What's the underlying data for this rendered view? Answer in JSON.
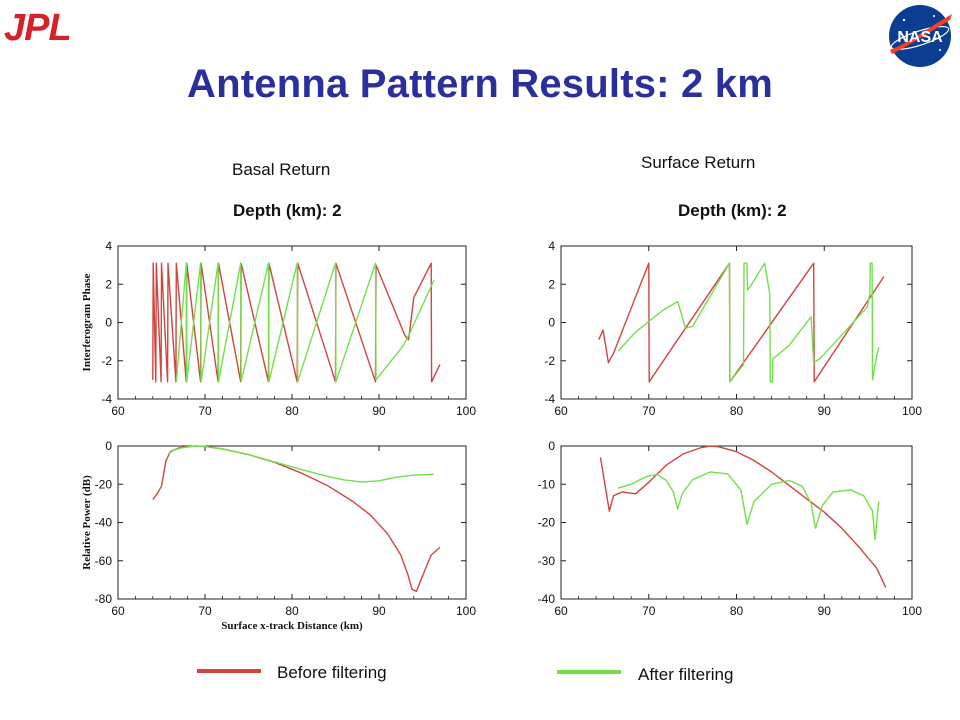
{
  "header": {
    "title": "Antenna Pattern Results: 2 km",
    "left_logo": "JPL",
    "right_logo": "NASA",
    "right_logo_icon": "nasa-meatball-icon"
  },
  "columns": {
    "left_label": "Basal Return",
    "right_label": "Surface Return",
    "left_depth": "Depth (km): 2",
    "right_depth": "Depth (km): 2"
  },
  "legend": {
    "before_label": "Before filtering",
    "after_label": "After filtering"
  },
  "colors": {
    "title": "#2a2f9c",
    "before": "#d0453f",
    "after": "#72e04a",
    "jpl": "#d7202a",
    "nasa_blue": "#0b3d91",
    "nasa_red": "#fc3d21"
  },
  "chart_data": [
    {
      "id": "basal-phase",
      "type": "line",
      "ylabel": "Interferogram Phase",
      "xlim": [
        60,
        100
      ],
      "ylim": [
        -4,
        4
      ],
      "xticks": [
        60,
        70,
        80,
        90,
        100
      ],
      "yticks": [
        -4,
        -2,
        0,
        2,
        4
      ],
      "series": [
        {
          "name": "Before filtering",
          "color": "#d0453f",
          "x": [
            64.0,
            64.05,
            64.35,
            64.4,
            64.95,
            65.0,
            65.7,
            65.75,
            66.65,
            66.7,
            67.85,
            67.9,
            69.5,
            69.55,
            71.5,
            71.55,
            74.1,
            74.15,
            77.3,
            77.35,
            80.6,
            80.65,
            85.0,
            85.05,
            89.6,
            89.65,
            93.0,
            93.4,
            94.0,
            96.0,
            96.05,
            97.0
          ],
          "y": [
            -3.0,
            3.1,
            -3.1,
            3.1,
            -3.1,
            3.1,
            -3.1,
            3.1,
            -3.1,
            3.1,
            -3.1,
            3.1,
            -3.1,
            3.1,
            -3.1,
            3.1,
            -3.1,
            3.1,
            -3.1,
            3.1,
            -3.1,
            3.1,
            -3.1,
            3.1,
            -3.1,
            3.0,
            -0.7,
            -0.9,
            1.3,
            3.1,
            -3.1,
            -2.2
          ]
        },
        {
          "name": "After filtering",
          "color": "#72e04a",
          "x": [
            66.7,
            67.85,
            67.9,
            69.5,
            69.55,
            71.5,
            71.55,
            74.1,
            74.15,
            77.3,
            77.35,
            80.6,
            80.65,
            85.0,
            85.05,
            89.6,
            89.65,
            92.8,
            93.5,
            96.3
          ],
          "y": [
            -3.1,
            3.1,
            -3.1,
            3.1,
            -3.1,
            3.1,
            -3.1,
            3.1,
            -3.1,
            3.1,
            -3.1,
            3.1,
            -3.1,
            3.1,
            -3.1,
            3.1,
            -3.0,
            -1.2,
            -0.6,
            2.2
          ]
        }
      ]
    },
    {
      "id": "surface-phase",
      "type": "line",
      "ylabel": "",
      "xlim": [
        60,
        100
      ],
      "ylim": [
        -4,
        4
      ],
      "xticks": [
        60,
        70,
        80,
        90,
        100
      ],
      "yticks": [
        -4,
        -2,
        0,
        2,
        4
      ],
      "series": [
        {
          "name": "Before filtering",
          "color": "#d0453f",
          "x": [
            64.3,
            64.8,
            65.4,
            66.0,
            70.0,
            70.05,
            79.2,
            79.25,
            88.8,
            88.85,
            96.8
          ],
          "y": [
            -0.9,
            -0.4,
            -2.1,
            -1.6,
            3.1,
            -3.1,
            3.1,
            -3.1,
            3.1,
            -3.1,
            2.4
          ]
        },
        {
          "name": "After filtering",
          "color": "#72e04a",
          "x": [
            66.5,
            68.5,
            71.5,
            73.3,
            74.2,
            75.0,
            79.2,
            79.25,
            80.8,
            80.85,
            81.2,
            81.25,
            81.6,
            83.2,
            83.8,
            83.85,
            84.1,
            84.15,
            86.0,
            88.5,
            88.8,
            89.5,
            94.9,
            95.2,
            95.25,
            95.45,
            95.5,
            96.0,
            96.2
          ],
          "y": [
            -1.5,
            -0.5,
            0.6,
            1.1,
            -0.3,
            -0.2,
            3.1,
            -3.1,
            -2.2,
            3.1,
            3.1,
            1.7,
            1.9,
            3.1,
            1.5,
            -3.1,
            -3.1,
            -1.9,
            -1.2,
            0.3,
            -2.1,
            -1.9,
            0.8,
            1.5,
            3.1,
            3.1,
            -3.0,
            -1.7,
            -1.3
          ]
        }
      ]
    },
    {
      "id": "basal-power",
      "type": "line",
      "ylabel": "Relative Power (dB)",
      "xlabel": "Surface x-track Distance (km)",
      "xlim": [
        60,
        100
      ],
      "ylim": [
        -80,
        0
      ],
      "xticks": [
        60,
        70,
        80,
        90,
        100
      ],
      "yticks": [
        -80,
        -60,
        -40,
        -20,
        0
      ],
      "series": [
        {
          "name": "Before filtering",
          "color": "#d0453f",
          "x": [
            64.0,
            64.5,
            65.0,
            65.5,
            66.0,
            67.0,
            68.0,
            69.0,
            70.0,
            72.0,
            75.0,
            78.0,
            81.0,
            84.0,
            87.0,
            89.0,
            91.0,
            92.5,
            93.3,
            93.8,
            94.3,
            95.0,
            96.0,
            97.0
          ],
          "y": [
            -28,
            -25,
            -21,
            -8,
            -3,
            -1,
            -0.3,
            0,
            -0.2,
            -1.5,
            -4.5,
            -8.5,
            -14,
            -20.5,
            -29,
            -36,
            -46,
            -57,
            -67,
            -75,
            -76,
            -68,
            -57,
            -53
          ]
        },
        {
          "name": "After filtering",
          "color": "#72e04a",
          "x": [
            65.8,
            66.5,
            67.5,
            69.0,
            70.0,
            72.0,
            75.0,
            78.0,
            81.0,
            84.0,
            86.0,
            88.0,
            90.0,
            92.0,
            94.0,
            96.3
          ],
          "y": [
            -4,
            -2,
            -0.8,
            0,
            -0.2,
            -1.5,
            -4.5,
            -8.3,
            -12.2,
            -15.8,
            -17.7,
            -18.8,
            -18.2,
            -16.3,
            -15.2,
            -14.8
          ]
        }
      ]
    },
    {
      "id": "surface-power",
      "type": "line",
      "ylabel": "",
      "xlim": [
        60,
        100
      ],
      "ylim": [
        -40,
        0
      ],
      "xticks": [
        60,
        70,
        80,
        90,
        100
      ],
      "yticks": [
        -40,
        -30,
        -20,
        -10,
        0
      ],
      "series": [
        {
          "name": "Before filtering",
          "color": "#d0453f",
          "x": [
            64.5,
            65.0,
            65.5,
            66.0,
            67.0,
            68.5,
            70.0,
            72.0,
            74.0,
            76.0,
            77.0,
            78.0,
            80.0,
            82.0,
            84.0,
            86.0,
            88.0,
            90.0,
            92.0,
            94.0,
            96.0,
            97.0
          ],
          "y": [
            -3,
            -10,
            -17,
            -13,
            -12,
            -12.5,
            -9.5,
            -5,
            -2,
            -0.4,
            0,
            -0.2,
            -1.5,
            -3.8,
            -6.8,
            -10.3,
            -13.8,
            -17.3,
            -21.5,
            -26.5,
            -32,
            -37
          ]
        },
        {
          "name": "After filtering",
          "color": "#72e04a",
          "x": [
            66.5,
            68.0,
            69.0,
            70.0,
            71.0,
            72.0,
            72.8,
            73.3,
            73.8,
            75.0,
            77.0,
            79.0,
            80.5,
            81.2,
            82.0,
            84.0,
            86.0,
            87.5,
            88.5,
            89.0,
            89.8,
            91.0,
            93.0,
            94.5,
            95.5,
            95.8,
            96.2
          ],
          "y": [
            -11,
            -10,
            -8.8,
            -7.8,
            -7.5,
            -9,
            -12,
            -16.5,
            -12.5,
            -8.8,
            -6.8,
            -7.3,
            -11.5,
            -20.5,
            -14.5,
            -10,
            -9,
            -10.5,
            -15,
            -21.5,
            -15.5,
            -12,
            -11.5,
            -13,
            -17,
            -24.5,
            -14.5
          ]
        }
      ]
    }
  ]
}
